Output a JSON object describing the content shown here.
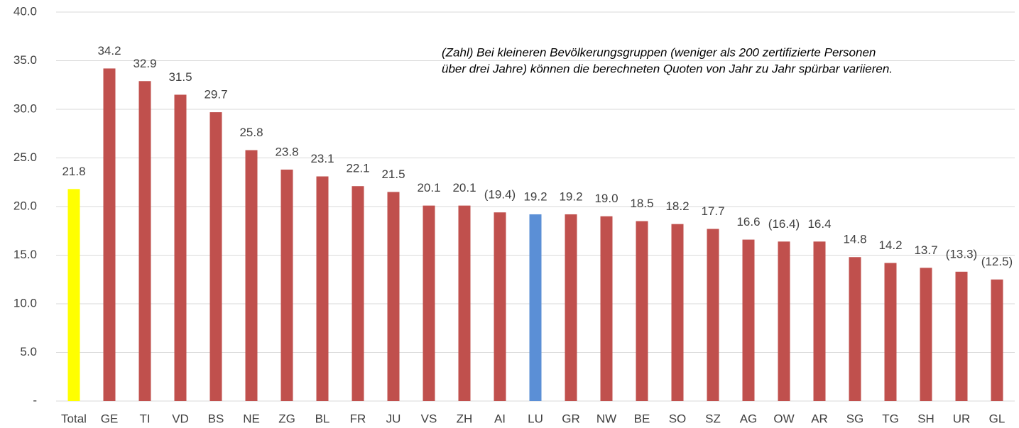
{
  "chart_data": {
    "type": "bar",
    "categories": [
      "Total",
      "GE",
      "TI",
      "VD",
      "BS",
      "NE",
      "ZG",
      "BL",
      "FR",
      "JU",
      "VS",
      "ZH",
      "AI",
      "LU",
      "GR",
      "NW",
      "BE",
      "SO",
      "SZ",
      "AG",
      "OW",
      "AR",
      "SG",
      "TG",
      "SH",
      "UR",
      "GL"
    ],
    "values": [
      21.8,
      34.2,
      32.9,
      31.5,
      29.7,
      25.8,
      23.8,
      23.1,
      22.1,
      21.5,
      20.1,
      20.1,
      19.4,
      19.2,
      19.2,
      19.0,
      18.5,
      18.2,
      17.7,
      16.6,
      16.4,
      16.4,
      14.8,
      14.2,
      13.7,
      13.3,
      12.5
    ],
    "value_labels": [
      "21.8",
      "34.2",
      "32.9",
      "31.5",
      "29.7",
      "25.8",
      "23.8",
      "23.1",
      "22.1",
      "21.5",
      "20.1",
      "20.1",
      "(19.4)",
      "19.2",
      "19.2",
      "19.0",
      "18.5",
      "18.2",
      "17.7",
      "16.6",
      "(16.4)",
      "16.4",
      "14.8",
      "14.2",
      "13.7",
      "(13.3)",
      "(12.5)"
    ],
    "colors": [
      "#ffff00",
      "#c0504d",
      "#c0504d",
      "#c0504d",
      "#c0504d",
      "#c0504d",
      "#c0504d",
      "#c0504d",
      "#c0504d",
      "#c0504d",
      "#c0504d",
      "#c0504d",
      "#c0504d",
      "#5b8fd6",
      "#c0504d",
      "#c0504d",
      "#c0504d",
      "#c0504d",
      "#c0504d",
      "#c0504d",
      "#c0504d",
      "#c0504d",
      "#c0504d",
      "#c0504d",
      "#c0504d",
      "#c0504d",
      "#c0504d"
    ],
    "ylim": [
      0,
      40
    ],
    "yticks": [
      {
        "value": 0,
        "label": "-"
      },
      {
        "value": 5,
        "label": "5.0"
      },
      {
        "value": 10,
        "label": "10.0"
      },
      {
        "value": 15,
        "label": "15.0"
      },
      {
        "value": 20,
        "label": "20.0"
      },
      {
        "value": 25,
        "label": "25.0"
      },
      {
        "value": 30,
        "label": "30.0"
      },
      {
        "value": 35,
        "label": "35.0"
      },
      {
        "value": 40,
        "label": "40.0"
      }
    ],
    "grid": true,
    "annotation": [
      "(Zahl)  Bei kleineren Bevölkerungsgruppen (weniger als 200 zertifizierte Personen",
      "über drei Jahre) können die berechneten Quoten von Jahr zu Jahr spürbar variieren."
    ]
  }
}
